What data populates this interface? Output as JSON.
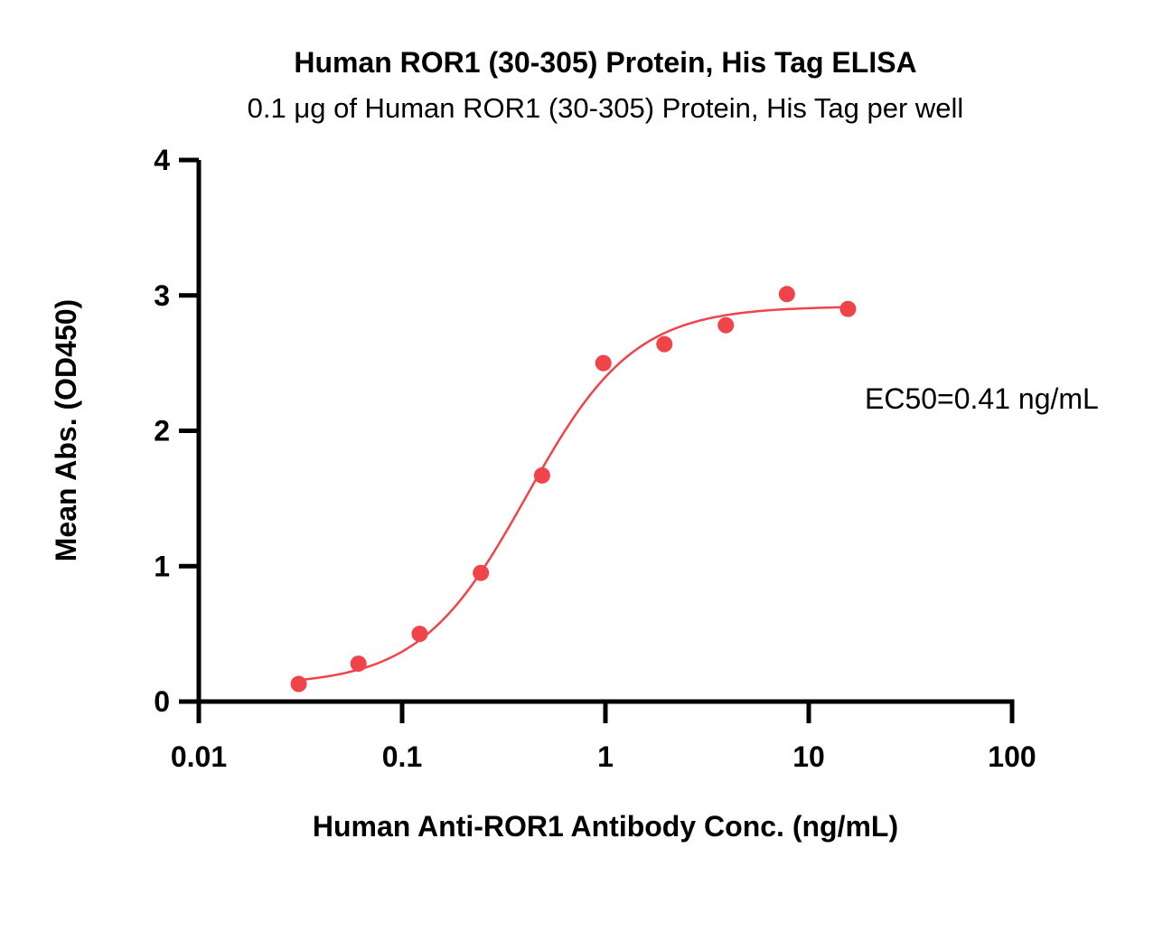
{
  "chart_data": {
    "type": "scatter",
    "title": "Human ROR1 (30-305) Protein, His Tag ELISA",
    "subtitle": "0.1 μg of Human ROR1 (30-305) Protein, His Tag per well",
    "xlabel": "Human Anti-ROR1 Antibody Conc. (ng/mL)",
    "ylabel": "Mean Abs. (OD450)",
    "x_scale": "log",
    "xlim": [
      0.01,
      100
    ],
    "ylim": [
      0,
      4
    ],
    "x_ticks": [
      "0.01",
      "0.1",
      "1",
      "10",
      "100"
    ],
    "y_ticks": [
      "0",
      "1",
      "2",
      "3",
      "4"
    ],
    "grid": false,
    "annotation": "EC50=0.41 ng/mL",
    "colors": {
      "series": "#f0434a",
      "axis": "#000000"
    },
    "series": [
      {
        "x": [
          0.031,
          0.061,
          0.122,
          0.244,
          0.488,
          0.977,
          1.95,
          3.91,
          7.81,
          15.6
        ],
        "y": [
          0.13,
          0.28,
          0.5,
          0.95,
          1.67,
          2.5,
          2.64,
          2.78,
          3.01,
          2.9
        ]
      }
    ],
    "fit": {
      "ec50": 0.41,
      "bottom": 0.12,
      "top": 2.92,
      "hill": 1.65
    }
  }
}
